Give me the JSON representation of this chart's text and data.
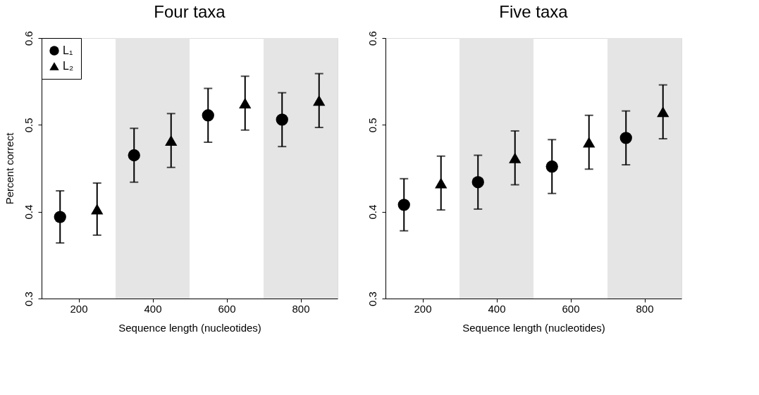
{
  "chart_data": [
    {
      "type": "scatter",
      "title": "Four taxa",
      "xlabel": "Sequence length (nucleotides)",
      "ylabel": "Percent correct",
      "xlim": [
        100,
        900
      ],
      "ylim": [
        0.3,
        0.6
      ],
      "xticks": [
        200,
        400,
        600,
        800
      ],
      "yticks": [
        0.3,
        0.4,
        0.5,
        0.6
      ],
      "grid": false,
      "legend": "top left",
      "series": [
        {
          "name": "L₁",
          "color": "#000000",
          "marker": "circle",
          "x": [
            150,
            350,
            550,
            750
          ],
          "values": [
            0.394,
            0.465,
            0.511,
            0.506
          ],
          "errors": [
            0.03,
            0.031,
            0.031,
            0.031
          ]
        },
        {
          "name": "L₂",
          "color": "#000000",
          "marker": "triangle",
          "x": [
            250,
            450,
            650,
            850
          ],
          "values": [
            0.403,
            0.482,
            0.525,
            0.528
          ],
          "errors": [
            0.03,
            0.031,
            0.031,
            0.031
          ]
        }
      ],
      "bands": [
        {
          "axis": "x",
          "from": 300,
          "to": 500,
          "color": "#e5e5e5"
        },
        {
          "axis": "x",
          "from": 700,
          "to": 900,
          "color": "#e5e5e5"
        }
      ]
    },
    {
      "type": "scatter",
      "title": "Five taxa",
      "xlabel": "Sequence length (nucleotides)",
      "xlim": [
        100,
        900
      ],
      "ylim": [
        0.3,
        0.6
      ],
      "xticks": [
        200,
        400,
        600,
        800
      ],
      "yticks": [
        0.3,
        0.4,
        0.5,
        0.6
      ],
      "grid": false,
      "series": [
        {
          "color": "#000000",
          "marker": "circle",
          "x": [
            150,
            350,
            550,
            750
          ],
          "values": [
            0.408,
            0.434,
            0.452,
            0.485
          ],
          "errors": [
            0.03,
            0.031,
            0.031,
            0.031
          ]
        },
        {
          "color": "#000000",
          "marker": "triangle",
          "x": [
            250,
            450,
            650,
            850
          ],
          "values": [
            0.433,
            0.462,
            0.48,
            0.515
          ],
          "errors": [
            0.031,
            0.031,
            0.031,
            0.031
          ]
        }
      ],
      "bands": [
        {
          "axis": "x",
          "from": 300,
          "to": 500,
          "color": "#e5e5e5"
        },
        {
          "axis": "x",
          "from": 700,
          "to": 900,
          "color": "#e5e5e5"
        }
      ]
    }
  ]
}
